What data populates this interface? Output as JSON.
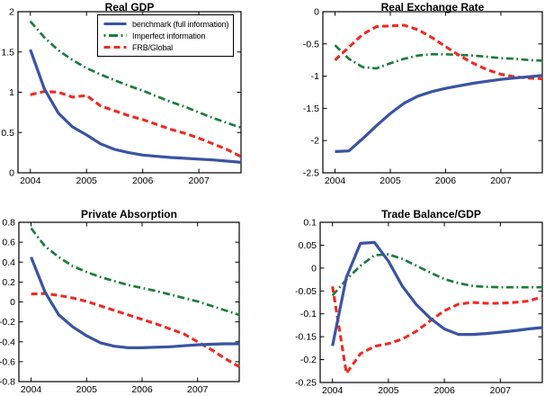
{
  "figure": {
    "background": "#ffffff",
    "axis_color": "#000000"
  },
  "legend": {
    "position": "top-right-inside-real-gdp-panel",
    "items": [
      {
        "label": "benchmark (full information)",
        "style": "solid",
        "color": "#3a53a4"
      },
      {
        "label": "Imperfect information",
        "style": "dashdot",
        "color": "#1c7c3d"
      },
      {
        "label": "FRB/Global",
        "style": "dashed",
        "color": "#ed2b24"
      }
    ]
  },
  "chart_data": [
    {
      "type": "line",
      "title": "Real GDP",
      "x": [
        2004,
        2004.25,
        2004.5,
        2004.75,
        2005,
        2005.25,
        2005.5,
        2005.75,
        2006,
        2006.25,
        2006.5,
        2006.75,
        2007,
        2007.25,
        2007.5,
        2007.75
      ],
      "xlim": [
        2003.78,
        2007.75
      ],
      "ylim": [
        0,
        2
      ],
      "xticks": [
        2004,
        2005,
        2006,
        2007
      ],
      "xtick_labels": [
        "2004",
        "2005",
        "2006",
        "2007"
      ],
      "yticks": [
        0,
        0.5,
        1,
        1.5,
        2
      ],
      "ytick_labels": [
        "0",
        "0.5",
        "1",
        "1.5",
        "2"
      ],
      "grid": false,
      "legend_visible": true,
      "series": [
        {
          "name": "benchmark (full information)",
          "color": "#3a53a4",
          "style": "solid",
          "values": [
            1.53,
            1.04,
            0.74,
            0.57,
            0.47,
            0.36,
            0.29,
            0.25,
            0.22,
            0.205,
            0.19,
            0.18,
            0.17,
            0.16,
            0.145,
            0.13
          ]
        },
        {
          "name": "Imperfect information",
          "color": "#1c7c3d",
          "style": "dashdot",
          "values": [
            1.88,
            1.68,
            1.52,
            1.4,
            1.3,
            1.22,
            1.15,
            1.08,
            1.02,
            0.95,
            0.88,
            0.82,
            0.75,
            0.68,
            0.62,
            0.56
          ]
        },
        {
          "name": "FRB/Global",
          "color": "#ed2b24",
          "style": "dashed",
          "values": [
            0.97,
            1.01,
            1.0,
            0.94,
            0.96,
            0.83,
            0.77,
            0.71,
            0.66,
            0.6,
            0.54,
            0.49,
            0.43,
            0.36,
            0.29,
            0.2
          ]
        }
      ]
    },
    {
      "type": "line",
      "title": "Real Exchange Rate",
      "x": [
        2004,
        2004.25,
        2004.5,
        2004.75,
        2005,
        2005.25,
        2005.5,
        2005.75,
        2006,
        2006.25,
        2006.5,
        2006.75,
        2007,
        2007.25,
        2007.5,
        2007.75
      ],
      "xlim": [
        2003.78,
        2007.75
      ],
      "ylim": [
        -2.5,
        0
      ],
      "xticks": [
        2004,
        2005,
        2006,
        2007
      ],
      "xtick_labels": [
        "2004",
        "2005",
        "2006",
        "2007"
      ],
      "yticks": [
        0,
        -0.5,
        -1,
        -1.5,
        -2,
        -2.5
      ],
      "ytick_labels": [
        "0",
        "-0.5",
        "-1",
        "-1.5",
        "-2",
        "-2.5"
      ],
      "grid": false,
      "legend_visible": false,
      "series": [
        {
          "name": "benchmark (full information)",
          "color": "#3a53a4",
          "style": "solid",
          "values": [
            -2.17,
            -2.16,
            -1.97,
            -1.77,
            -1.58,
            -1.42,
            -1.31,
            -1.24,
            -1.19,
            -1.15,
            -1.11,
            -1.08,
            -1.05,
            -1.03,
            -1.01,
            -0.99
          ]
        },
        {
          "name": "Imperfect information",
          "color": "#1c7c3d",
          "style": "dashdot",
          "values": [
            -0.52,
            -0.73,
            -0.86,
            -0.88,
            -0.8,
            -0.73,
            -0.68,
            -0.66,
            -0.66,
            -0.67,
            -0.68,
            -0.7,
            -0.72,
            -0.73,
            -0.75,
            -0.76
          ]
        },
        {
          "name": "FRB/Global",
          "color": "#ed2b24",
          "style": "dashed",
          "values": [
            -0.75,
            -0.55,
            -0.35,
            -0.23,
            -0.22,
            -0.21,
            -0.28,
            -0.4,
            -0.54,
            -0.68,
            -0.8,
            -0.9,
            -0.97,
            -1.01,
            -1.03,
            -1.04
          ]
        }
      ]
    },
    {
      "type": "line",
      "title": "Private Absorption",
      "x": [
        2004,
        2004.25,
        2004.5,
        2004.75,
        2005,
        2005.25,
        2005.5,
        2005.75,
        2006,
        2006.25,
        2006.5,
        2006.75,
        2007,
        2007.25,
        2007.5,
        2007.75
      ],
      "xlim": [
        2003.78,
        2007.75
      ],
      "ylim": [
        -0.8,
        0.8
      ],
      "xticks": [
        2004,
        2005,
        2006,
        2007
      ],
      "xtick_labels": [
        "2004",
        "2005",
        "2006",
        "2007"
      ],
      "yticks": [
        0.8,
        0.6,
        0.4,
        0.2,
        0,
        -0.2,
        -0.4,
        -0.6,
        -0.8
      ],
      "ytick_labels": [
        "0.8",
        "0.6",
        "0.4",
        "0.2",
        "0",
        "-0.2",
        "-0.4",
        "-0.6",
        "-0.8"
      ],
      "grid": false,
      "legend_visible": false,
      "series": [
        {
          "name": "benchmark (full information)",
          "color": "#3a53a4",
          "style": "solid",
          "values": [
            0.45,
            0.1,
            -0.13,
            -0.25,
            -0.34,
            -0.41,
            -0.445,
            -0.46,
            -0.46,
            -0.455,
            -0.45,
            -0.44,
            -0.43,
            -0.425,
            -0.42,
            -0.42
          ]
        },
        {
          "name": "Imperfect information",
          "color": "#1c7c3d",
          "style": "dashdot",
          "values": [
            0.74,
            0.56,
            0.45,
            0.36,
            0.3,
            0.25,
            0.21,
            0.17,
            0.14,
            0.11,
            0.075,
            0.04,
            0.005,
            -0.04,
            -0.085,
            -0.13
          ]
        },
        {
          "name": "FRB/Global",
          "color": "#ed2b24",
          "style": "dashed",
          "values": [
            0.08,
            0.085,
            0.065,
            0.04,
            0.005,
            -0.04,
            -0.085,
            -0.13,
            -0.175,
            -0.22,
            -0.27,
            -0.32,
            -0.4,
            -0.48,
            -0.57,
            -0.65
          ]
        }
      ]
    },
    {
      "type": "line",
      "title": "Trade Balance/GDP",
      "x": [
        2004,
        2004.25,
        2004.5,
        2004.75,
        2005,
        2005.25,
        2005.5,
        2005.75,
        2006,
        2006.25,
        2006.5,
        2006.75,
        2007,
        2007.25,
        2007.5,
        2007.75
      ],
      "xlim": [
        2003.78,
        2007.75
      ],
      "ylim": [
        -0.25,
        0.1
      ],
      "xticks": [
        2004,
        2005,
        2006,
        2007
      ],
      "xtick_labels": [
        "2004",
        "2005",
        "2006",
        "2007"
      ],
      "yticks": [
        0.1,
        0.05,
        0,
        -0.05,
        -0.1,
        -0.15,
        -0.2,
        -0.25
      ],
      "ytick_labels": [
        "0.1",
        "0.05",
        "0",
        "-0.05",
        "-0.1",
        "-0.15",
        "-0.2",
        "-0.25"
      ],
      "grid": false,
      "legend_visible": false,
      "series": [
        {
          "name": "benchmark (full information)",
          "color": "#3a53a4",
          "style": "solid",
          "values": [
            -0.17,
            -0.02,
            0.054,
            0.056,
            0.015,
            -0.04,
            -0.08,
            -0.11,
            -0.133,
            -0.145,
            -0.145,
            -0.143,
            -0.14,
            -0.137,
            -0.133,
            -0.13
          ]
        },
        {
          "name": "Imperfect information",
          "color": "#1c7c3d",
          "style": "dashdot",
          "values": [
            -0.06,
            -0.025,
            0.005,
            0.028,
            0.03,
            0.02,
            0.005,
            -0.01,
            -0.024,
            -0.033,
            -0.039,
            -0.041,
            -0.042,
            -0.042,
            -0.042,
            -0.042
          ]
        },
        {
          "name": "FRB/Global",
          "color": "#ed2b24",
          "style": "dashed",
          "values": [
            -0.04,
            -0.23,
            -0.187,
            -0.171,
            -0.165,
            -0.155,
            -0.138,
            -0.115,
            -0.093,
            -0.079,
            -0.075,
            -0.077,
            -0.077,
            -0.075,
            -0.072,
            -0.063
          ]
        }
      ]
    }
  ]
}
